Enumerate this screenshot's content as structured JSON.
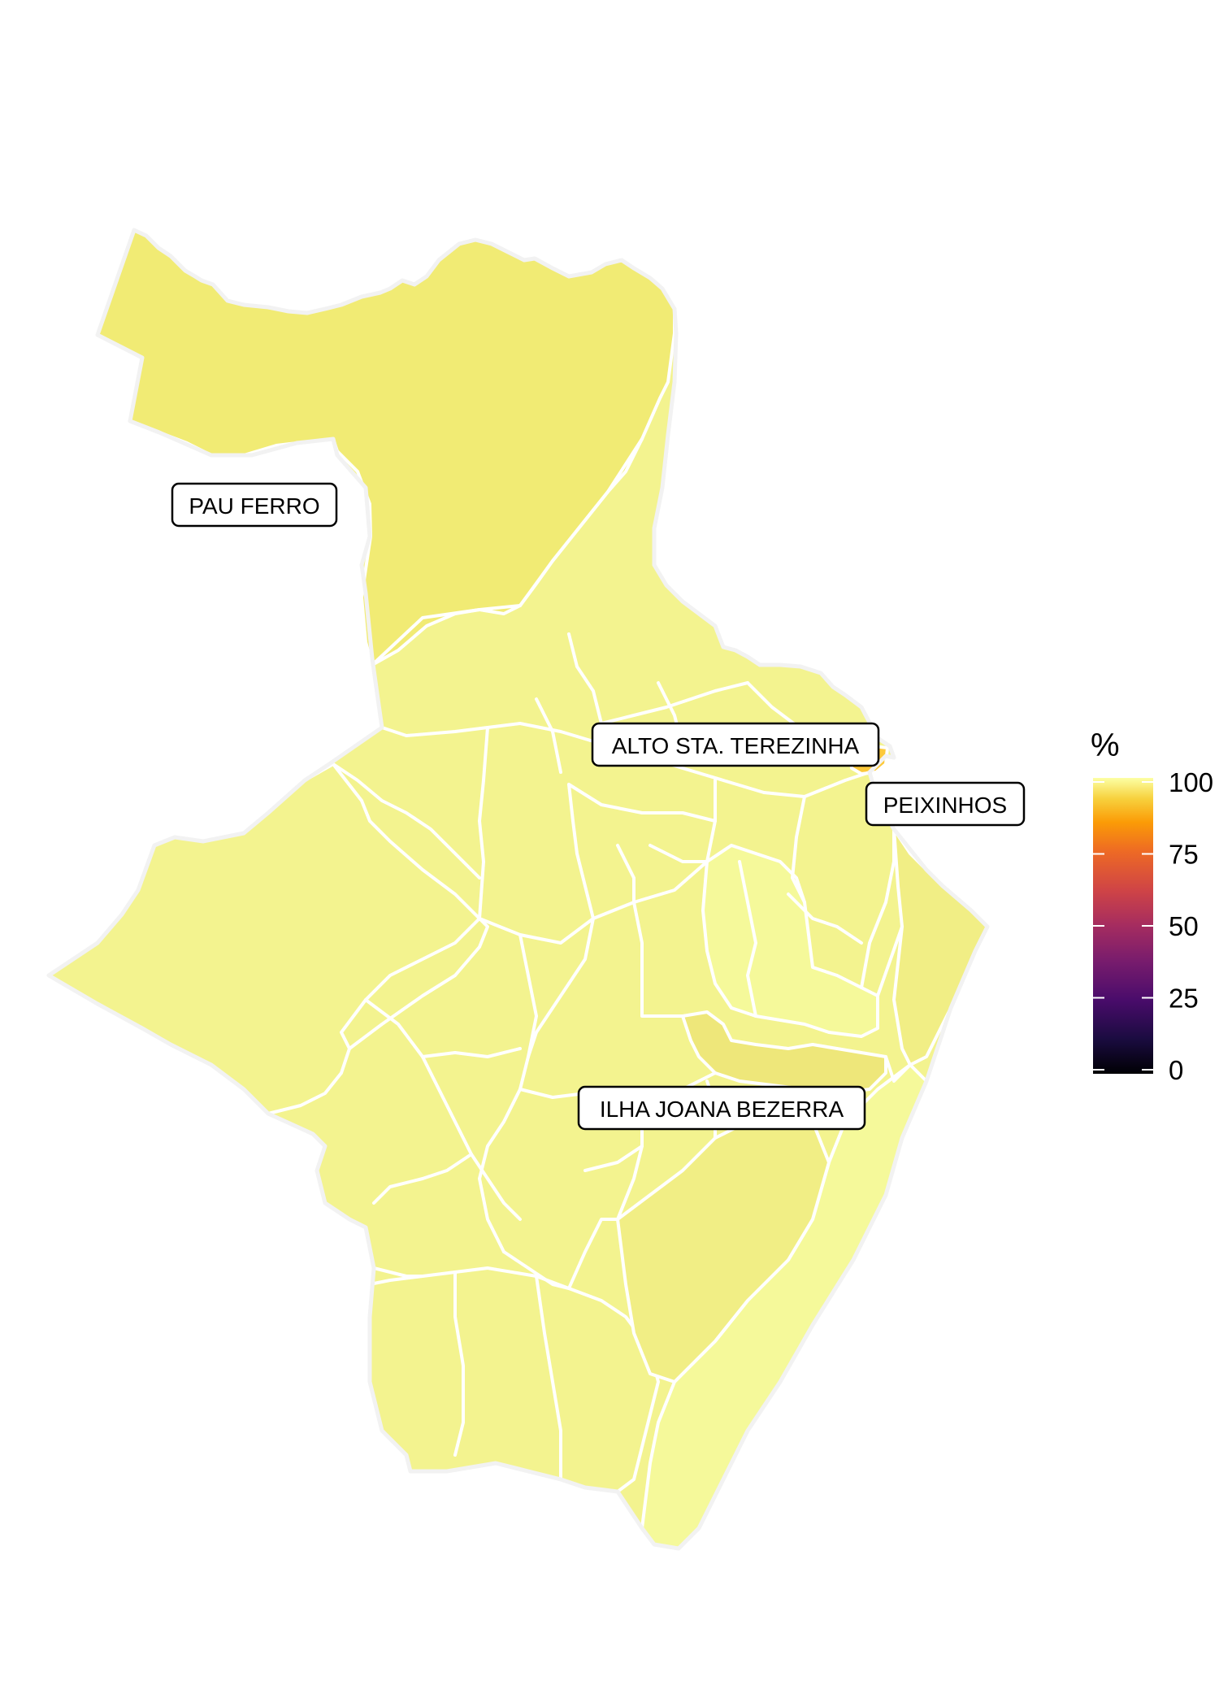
{
  "map": {
    "labels": {
      "pau_ferro": "PAU FERRO",
      "alto_sta_terezinha": "ALTO STA. TEREZINHA",
      "peixinhos": "PEIXINHOS",
      "ilha_joana_bezerra": "ILHA JOANA BEZERRA"
    },
    "fill_colors": {
      "very_high": "#f5f99a",
      "high": "#f1ee85",
      "mid_high": "#eee77a",
      "peixinhos": "#fcc93a",
      "alto": "#000004"
    }
  },
  "legend": {
    "title": "%",
    "ticks": [
      "100",
      "75",
      "50",
      "25",
      "0"
    ],
    "scale_min": 0,
    "scale_max": 100,
    "colormap": "inferno"
  }
}
